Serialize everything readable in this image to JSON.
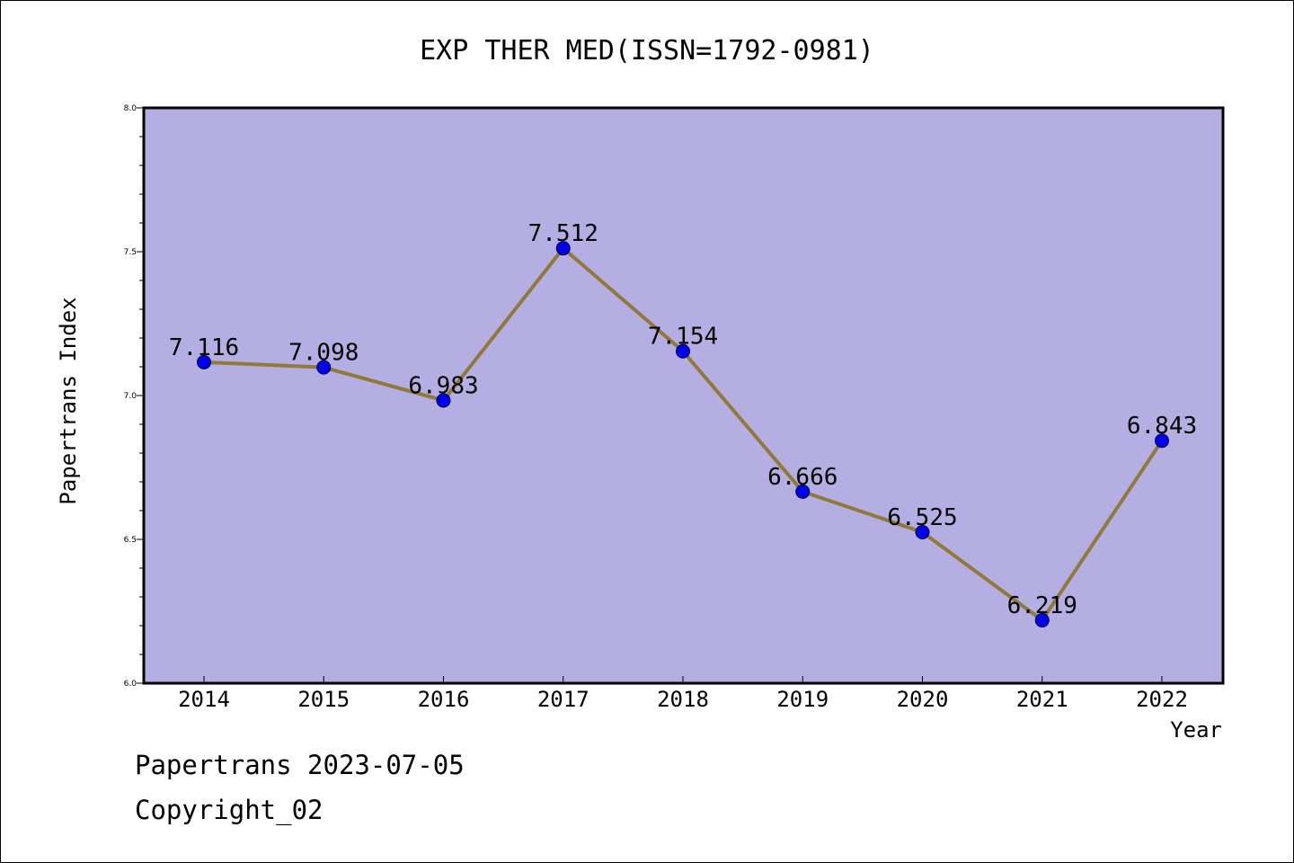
{
  "chart_data": {
    "type": "line",
    "title": "EXP THER MED(ISSN=1792-0981)",
    "xlabel": "Year",
    "ylabel": "Papertrans Index",
    "categories": [
      "2014",
      "2015",
      "2016",
      "2017",
      "2018",
      "2019",
      "2020",
      "2021",
      "2022"
    ],
    "series": [
      {
        "values": [
          7.116,
          7.098,
          6.983,
          7.512,
          7.154,
          6.666,
          6.525,
          6.219,
          6.843
        ],
        "labels": [
          "7.116",
          "7.098",
          "6.983",
          "7.512",
          "7.154",
          "6.666",
          "6.525",
          "6.219",
          "6.843"
        ]
      }
    ],
    "ylim": [
      6.0,
      8.0
    ],
    "yticks": [
      "6.0",
      "6.5",
      "7.0",
      "7.5",
      "8.0"
    ],
    "grid": false,
    "colors": {
      "plot_background": "#b4aee2",
      "line": "#8f7a3a",
      "marker": "#0000ee"
    }
  },
  "footer": {
    "line1": "Papertrans 2023-07-05",
    "line2": "Copyright_02"
  }
}
